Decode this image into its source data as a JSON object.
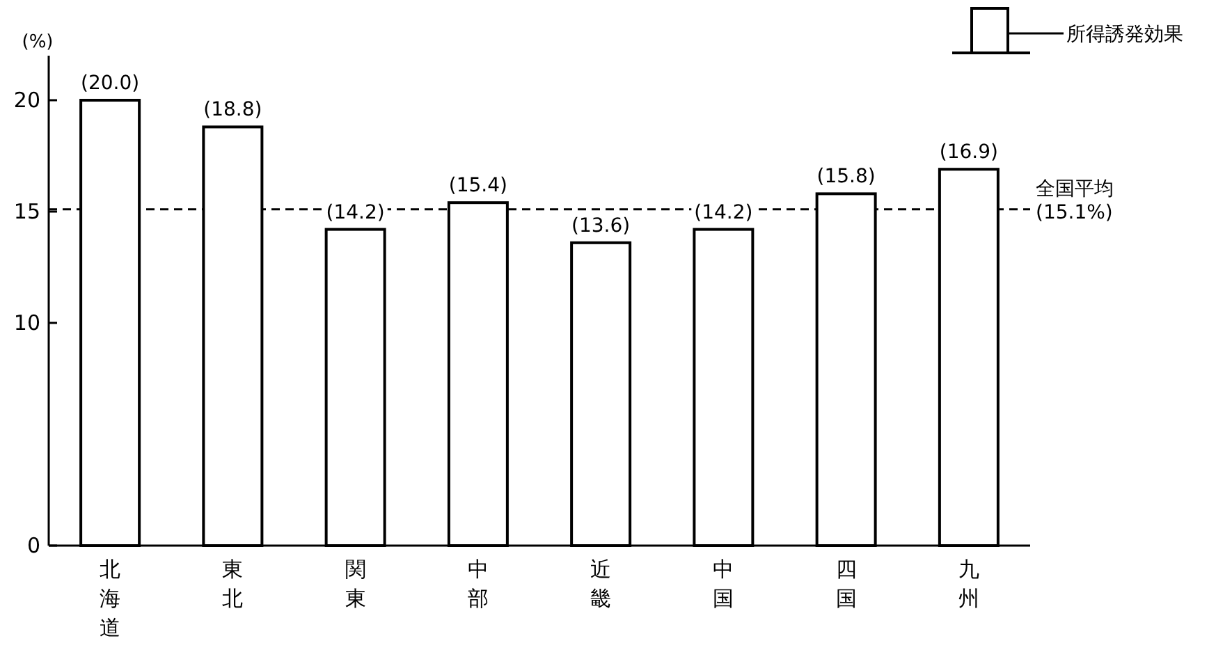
{
  "chart_data": {
    "type": "bar",
    "ylabel": "(%)",
    "categories": [
      "北海道",
      "東北",
      "関東",
      "中部",
      "近畿",
      "中国",
      "四国",
      "九州"
    ],
    "series": [
      {
        "name": "所得誘発効果",
        "color": "#ffffff",
        "values": [
          20.0,
          18.8,
          14.2,
          15.4,
          13.6,
          14.2,
          15.8,
          16.9
        ],
        "value_labels": [
          "(20.0)",
          "(18.8)",
          "(14.2)",
          "(15.4)",
          "(13.6)",
          "(14.2)",
          "(15.8)",
          "(16.9)"
        ]
      }
    ],
    "ylim": [
      0,
      22
    ],
    "yticks": [
      0,
      10,
      15,
      20
    ],
    "ref_lines": [
      {
        "axis": "y",
        "value": 15.1,
        "label": "全国平均 (15.1%)",
        "line_style": "dashed",
        "color": "#000000"
      }
    ],
    "legend": "top right",
    "grid": false
  }
}
